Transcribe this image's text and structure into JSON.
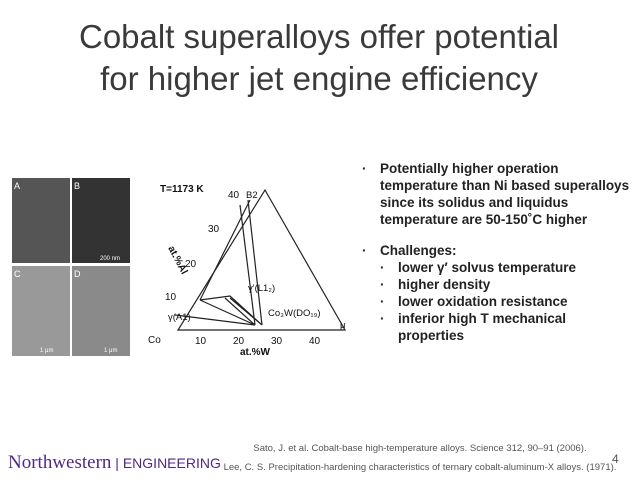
{
  "header": {
    "title_lines": [
      "Cobalt superalloys offer potential",
      "for higher jet engine efficiency"
    ]
  },
  "micrographs": {
    "panels": [
      "A",
      "B",
      "C",
      "D"
    ],
    "scale_bars": [
      "200 nm",
      "1 μm",
      "1 μm"
    ]
  },
  "diagram": {
    "temperature": "T=1173 K",
    "al_axis": "at.%Al",
    "w_axis": "at.%W",
    "origin": "Co",
    "al_ticks": [
      "10",
      "20",
      "30",
      "40"
    ],
    "w_ticks": [
      "10",
      "20",
      "30",
      "40"
    ],
    "phases": [
      "B2",
      "γ'(L1₂)",
      "γ(A1)",
      "Co₃W(DO₁₉)",
      "μ"
    ]
  },
  "bullets": [
    {
      "text": "Potentially higher operation temperature than Ni based superalloys since its solidus and liquidus temperature are 50-150˚C higher",
      "sub": []
    },
    {
      "text": "Challenges:",
      "sub": [
        "lower γ′ solvus temperature",
        "higher density",
        "lower oxidation resistance",
        "inferior high T mechanical properties"
      ]
    }
  ],
  "footer": {
    "logo_main": "Northwestern",
    "logo_sub": "ENGINEERING",
    "references": [
      "Sato, J. et al. Cobalt-base high-temperature alloys. Science 312, 90–91 (2006).",
      "Lee, C. S. Precipitation-hardening characteristics of ternary cobalt-aluminum-X alloys. (1971)."
    ],
    "page": "4"
  }
}
